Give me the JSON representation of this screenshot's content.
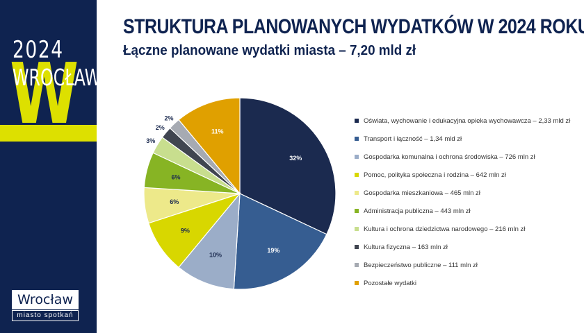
{
  "sidebar": {
    "year": "2024",
    "big_letter": "W",
    "city_upper": "WROCŁAW",
    "logo_name": "Wrocław",
    "logo_tagline": "miasto spotkań"
  },
  "header": {
    "title": "STRUKTURA PLANOWANYCH WYDATKÓW W 2024 ROKU",
    "subtitle": "Łączne planowane wydatki miasta – 7,20 mld zł"
  },
  "colors": {
    "navy": "#0f2350",
    "accent_yellow": "#dde000"
  },
  "chart_data": {
    "type": "pie",
    "title": "",
    "start_angle_deg": 0,
    "direction": "clockwise",
    "legend_position": "right",
    "slices": [
      {
        "label": "Oświata, wychowanie i edukacyjna opieka wychowawcza – 2,33 mld zł",
        "value": 32,
        "pct_label": "32%",
        "color": "#1b2a4f",
        "label_color": "#ffffff"
      },
      {
        "label": "Transport i łączność – 1,34 mld zł",
        "value": 19,
        "pct_label": "19%",
        "color": "#365d91",
        "label_color": "#ffffff"
      },
      {
        "label": "Gospodarka komunalna i ochrona środowiska – 726 mln zł",
        "value": 10,
        "pct_label": "10%",
        "color": "#9badc8",
        "label_color": "#1b2a4f"
      },
      {
        "label": "Pomoc, polityka społeczna i rodzina – 642 mln zł",
        "value": 9,
        "pct_label": "9%",
        "color": "#d8d700",
        "label_color": "#1b2a4f"
      },
      {
        "label": "Gospodarka mieszkaniowa – 465 mln zł",
        "value": 6,
        "pct_label": "6%",
        "color": "#ede98a",
        "label_color": "#1b2a4f"
      },
      {
        "label": "Administracja publiczna – 443 mln zł",
        "value": 6,
        "pct_label": "6%",
        "color": "#87b424",
        "label_color": "#1b2a4f"
      },
      {
        "label": "Kultura i ochrona dziedzictwa narodowego – 216 mln zł",
        "value": 3,
        "pct_label": "3%",
        "color": "#c8de8e",
        "label_color": "#1b2a4f"
      },
      {
        "label": "Kultura fizyczna – 163 mln zł",
        "value": 2,
        "pct_label": "2%",
        "color": "#404550",
        "label_color": "#1b2a4f"
      },
      {
        "label": "Bezpieczeństwo publiczne – 111 mln zł",
        "value": 2,
        "pct_label": "2%",
        "color": "#a6aab2",
        "label_color": "#1b2a4f"
      },
      {
        "label": "Pozostałe wydatki",
        "value": 11,
        "pct_label": "11%",
        "color": "#e0a000",
        "label_color": "#ffffff"
      }
    ]
  }
}
